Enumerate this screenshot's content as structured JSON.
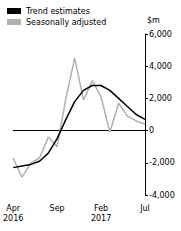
{
  "chart_data": {
    "type": "line",
    "ylabel": "$m",
    "categories": [
      "Apr\n2016",
      null,
      null,
      null,
      null,
      "Sep",
      null,
      null,
      null,
      null,
      "Feb\n2017",
      null,
      null,
      null,
      null,
      "Jul"
    ],
    "series": [
      {
        "name": "Trend estimates",
        "color": "#000000",
        "values": [
          -2300,
          -2200,
          -2100,
          -1900,
          -1400,
          -500,
          700,
          1800,
          2500,
          2800,
          2800,
          2500,
          2000,
          1500,
          1000,
          700
        ]
      },
      {
        "name": "Seasonally adjusted",
        "color": "#b0b0b0",
        "values": [
          -1700,
          -2900,
          -2000,
          -1700,
          -400,
          -1000,
          2000,
          4500,
          1900,
          3100,
          2100,
          -100,
          1700,
          900,
          600,
          400
        ]
      }
    ],
    "ylim": [
      -4000,
      6000
    ],
    "yticks": [
      -4000,
      -2000,
      0,
      2000,
      4000,
      6000
    ],
    "grid": false,
    "legend": "top-left"
  }
}
